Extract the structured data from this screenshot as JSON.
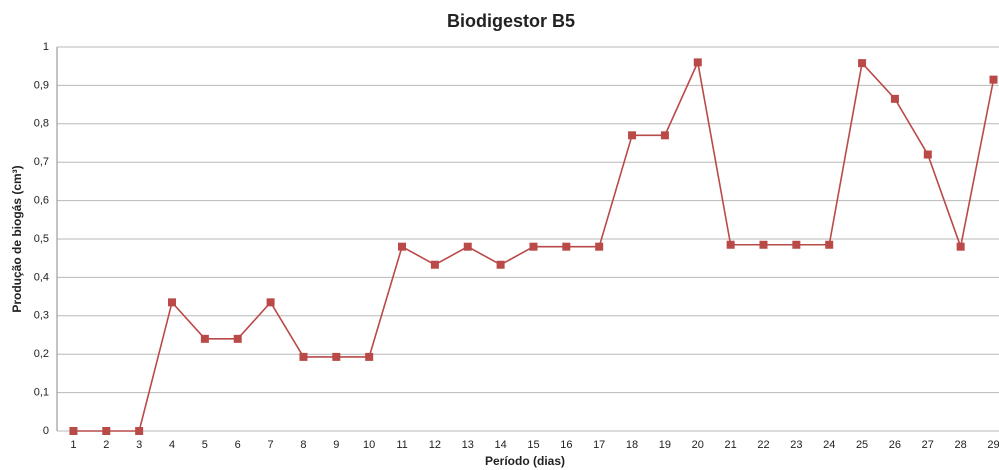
{
  "chart_data": {
    "type": "line",
    "title": "Biodigestor B5",
    "x_label": "Período (dias)",
    "y_label": "Produção de biogás (cm³)",
    "categories": [
      "1",
      "2",
      "3",
      "4",
      "5",
      "6",
      "7",
      "8",
      "9",
      "10",
      "11",
      "12",
      "13",
      "14",
      "15",
      "16",
      "17",
      "18",
      "19",
      "20",
      "21",
      "22",
      "23",
      "24",
      "25",
      "26",
      "27",
      "28",
      "29"
    ],
    "values": [
      0,
      0,
      0,
      0.335,
      0.24,
      0.24,
      0.335,
      0.193,
      0.193,
      0.193,
      0.48,
      0.433,
      0.48,
      0.433,
      0.48,
      0.48,
      0.48,
      0.77,
      0.77,
      0.96,
      0.485,
      0.485,
      0.485,
      0.485,
      0.958,
      0.865,
      0.72,
      0.48,
      0.915
    ],
    "color": "#b94a48",
    "ylim": [
      0,
      1
    ],
    "yticks": [
      0,
      {
        "value": 0.1,
        "label": "0,1"
      },
      {
        "value": 0.2,
        "label": "0,2"
      },
      {
        "value": 0.3,
        "label": "0,3"
      },
      {
        "value": 0.4,
        "label": "0,4"
      },
      {
        "value": 0.5,
        "label": "0,5"
      },
      {
        "value": 0.6,
        "label": "0,6"
      },
      {
        "value": 0.7,
        "label": "0,7"
      },
      {
        "value": 0.8,
        "label": "0,8"
      },
      {
        "value": 0.9,
        "label": "0,9"
      },
      1
    ],
    "grid": true
  }
}
